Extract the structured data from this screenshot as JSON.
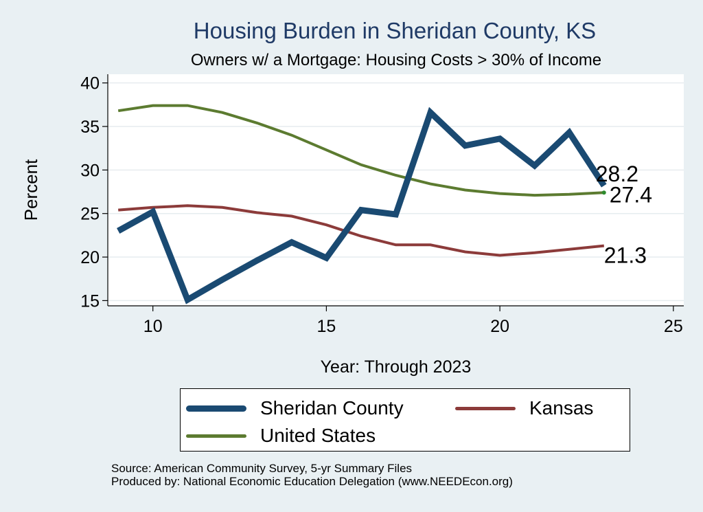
{
  "chart_data": {
    "type": "line",
    "title": "Housing Burden in Sheridan County, KS",
    "subtitle": "Owners w/ a Mortgage: Housing Costs > 30% of Income",
    "xlabel": "Year: Through 2023",
    "ylabel": "Percent",
    "xlim": [
      8.7,
      25.3
    ],
    "ylim": [
      14.4,
      41
    ],
    "xticks": [
      10,
      15,
      20,
      25
    ],
    "yticks": [
      15,
      20,
      25,
      30,
      35,
      40
    ],
    "grid": true,
    "legend_position": "bottom",
    "x": [
      9,
      10,
      11,
      12,
      13,
      14,
      15,
      16,
      17,
      18,
      19,
      20,
      21,
      22,
      23
    ],
    "series": [
      {
        "name": "Sheridan County",
        "color": "#1a4a72",
        "values": [
          23.0,
          25.2,
          15.1,
          17.4,
          19.6,
          21.7,
          19.9,
          25.4,
          24.9,
          36.6,
          32.8,
          33.6,
          30.5,
          34.3,
          28.2
        ],
        "end_label": "28.2"
      },
      {
        "name": "Kansas",
        "color": "#8c3b3a",
        "values": [
          25.4,
          25.7,
          25.9,
          25.7,
          25.1,
          24.7,
          23.7,
          22.4,
          21.4,
          21.4,
          20.6,
          20.2,
          20.5,
          20.9,
          21.3
        ],
        "end_label": "21.3"
      },
      {
        "name": "United States",
        "color": "#5c7b30",
        "values": [
          36.8,
          37.4,
          37.4,
          36.6,
          35.4,
          34.0,
          32.3,
          30.6,
          29.4,
          28.4,
          27.7,
          27.3,
          27.1,
          27.2,
          27.4
        ],
        "end_label": "27.4"
      }
    ]
  },
  "legend": {
    "items": [
      {
        "label": "Sheridan County",
        "color": "#1a4a72"
      },
      {
        "label": "Kansas",
        "color": "#8c3b3a"
      },
      {
        "label": "United States",
        "color": "#5c7b30"
      }
    ]
  },
  "footer": {
    "source": "Source: American Community Survey, 5-yr Summary Files",
    "produced_by": "Produced by: National Economic Education Delegation (www.NEEDEcon.org)"
  }
}
